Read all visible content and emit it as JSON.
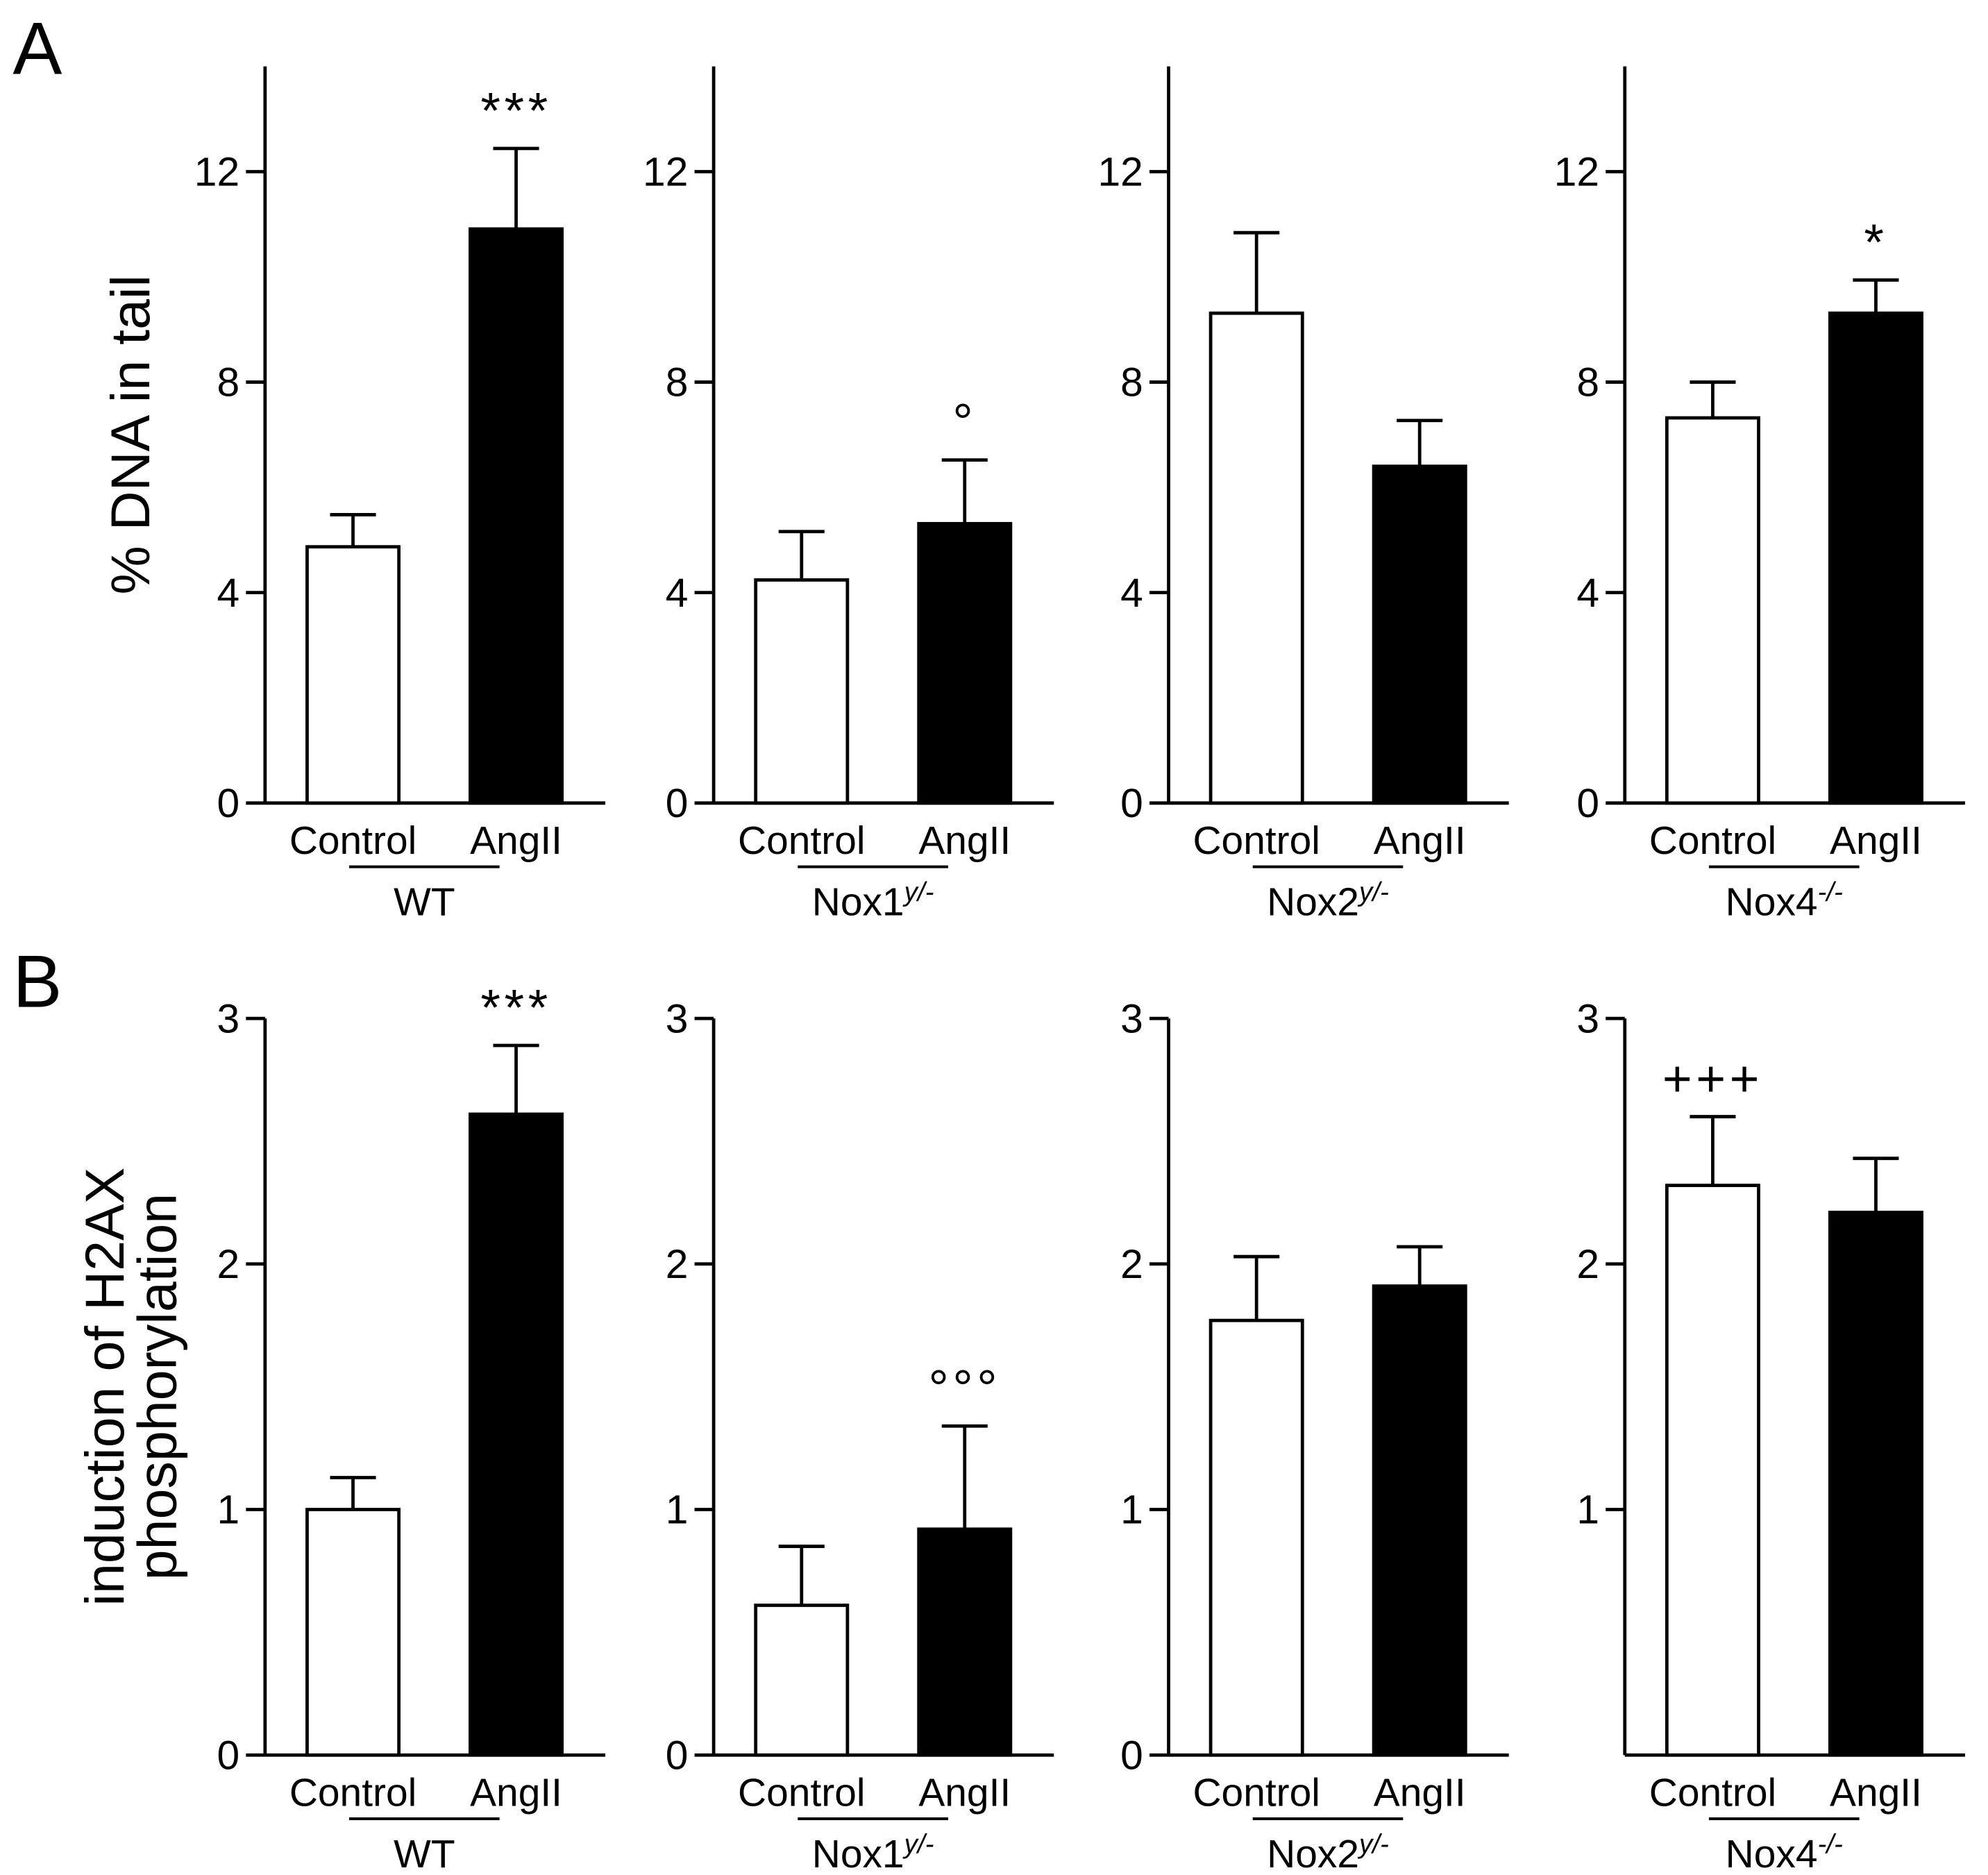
{
  "chart_data": [
    {
      "type": "bar",
      "panel_label": "A",
      "ylabel": [
        "% DNA in tail"
      ],
      "ylim": [
        0,
        14
      ],
      "yticks": [
        0,
        4,
        8,
        12
      ],
      "bar_colors": [
        "#ffffff",
        "#000000"
      ],
      "subplots": [
        {
          "group": "WT",
          "group_sup": "",
          "categories": [
            "Control",
            "AngII"
          ],
          "values": [
            4.87,
            10.91
          ],
          "errors": [
            0.61,
            1.53
          ],
          "annotations": [
            "",
            "***"
          ]
        },
        {
          "group": "Nox1",
          "group_sup": "y/-",
          "categories": [
            "Control",
            "AngII"
          ],
          "values": [
            4.24,
            5.31
          ],
          "errors": [
            0.92,
            1.21
          ],
          "annotations": [
            "",
            "°"
          ]
        },
        {
          "group": "Nox2",
          "group_sup": "y/-",
          "categories": [
            "Control",
            "AngII"
          ],
          "values": [
            9.31,
            6.4
          ],
          "errors": [
            1.53,
            0.87
          ],
          "annotations": [
            "",
            ""
          ]
        },
        {
          "group": "Nox4",
          "group_sup": "-/-",
          "categories": [
            "Control",
            "AngII"
          ],
          "values": [
            7.32,
            9.31
          ],
          "errors": [
            0.68,
            0.63
          ],
          "annotations": [
            "",
            "*"
          ]
        }
      ]
    },
    {
      "type": "bar",
      "panel_label": "B",
      "ylabel": [
        "induction of H2AX",
        "phosphorylation"
      ],
      "ylim": [
        0,
        3
      ],
      "yticks": [
        0,
        1,
        2,
        3
      ],
      "bar_colors": [
        "#ffffff",
        "#000000"
      ],
      "subplots": [
        {
          "group": "WT",
          "group_sup": "",
          "categories": [
            "Control",
            "AngII"
          ],
          "values": [
            1.0,
            2.61
          ],
          "errors": [
            0.13,
            0.28
          ],
          "annotations": [
            "",
            "***"
          ]
        },
        {
          "group": "Nox1",
          "group_sup": "y/-",
          "categories": [
            "Control",
            "AngII"
          ],
          "values": [
            0.61,
            0.92
          ],
          "errors": [
            0.24,
            0.42
          ],
          "annotations": [
            "",
            "°°°"
          ]
        },
        {
          "group": "Nox2",
          "group_sup": "y/-",
          "categories": [
            "Control",
            "AngII"
          ],
          "values": [
            1.77,
            1.91
          ],
          "errors": [
            0.26,
            0.16
          ],
          "annotations": [
            "",
            ""
          ]
        },
        {
          "group": "Nox4",
          "group_sup": "-/-",
          "categories": [
            "Control",
            "AngII"
          ],
          "values": [
            2.32,
            2.21
          ],
          "errors": [
            0.28,
            0.22
          ],
          "annotations": [
            "+++",
            ""
          ],
          "yticks": [
            1,
            2,
            3
          ]
        }
      ]
    }
  ]
}
